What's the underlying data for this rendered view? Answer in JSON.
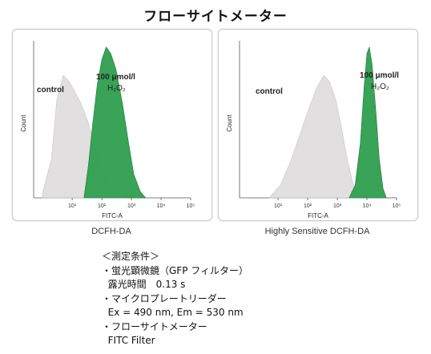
{
  "title": "フローサイトメーター",
  "chart_data": [
    {
      "type": "area",
      "caption": "DCFH-DA",
      "xlabel": "FITC-A",
      "ylabel": "Count",
      "xscale": "log",
      "xlim": [
        0.5,
        100000
      ],
      "ylim": [
        0,
        1.0
      ],
      "xticks": [
        10,
        100,
        1000,
        10000,
        100000
      ],
      "series": [
        {
          "name": "control",
          "color": "#dedcdc",
          "points": [
            [
              1,
              0.03
            ],
            [
              2,
              0.25
            ],
            [
              3,
              0.62
            ],
            [
              5,
              0.78
            ],
            [
              8,
              0.74
            ],
            [
              12,
              0.68
            ],
            [
              20,
              0.6
            ],
            [
              35,
              0.48
            ],
            [
              60,
              0.32
            ],
            [
              100,
              0.18
            ],
            [
              180,
              0.07
            ],
            [
              350,
              0.02
            ],
            [
              600,
              0
            ]
          ]
        },
        {
          "name": "100 μmol/l H2O2",
          "color": "#2e9e4e",
          "points": [
            [
              25,
              0
            ],
            [
              35,
              0.2
            ],
            [
              50,
              0.48
            ],
            [
              70,
              0.72
            ],
            [
              100,
              0.88
            ],
            [
              140,
              0.96
            ],
            [
              200,
              0.92
            ],
            [
              300,
              0.82
            ],
            [
              500,
              0.6
            ],
            [
              800,
              0.35
            ],
            [
              1200,
              0.15
            ],
            [
              2000,
              0.04
            ],
            [
              3000,
              0
            ]
          ]
        }
      ],
      "labels": {
        "control": "control",
        "treat_line1": "100 μmol/l",
        "treat_line2": "H₂O₂"
      }
    },
    {
      "type": "area",
      "caption": "Highly Sensitive DCFH-DA",
      "xlabel": "FITC-A",
      "ylabel": "Count",
      "xscale": "log",
      "xlim": [
        0.5,
        100000
      ],
      "ylim": [
        0,
        1.0
      ],
      "xticks": [
        10,
        100,
        1000,
        10000,
        100000
      ],
      "series": [
        {
          "name": "control",
          "color": "#dedcdc",
          "points": [
            [
              5,
              0
            ],
            [
              12,
              0.08
            ],
            [
              25,
              0.22
            ],
            [
              50,
              0.38
            ],
            [
              100,
              0.55
            ],
            [
              200,
              0.7
            ],
            [
              350,
              0.78
            ],
            [
              550,
              0.74
            ],
            [
              900,
              0.62
            ],
            [
              1400,
              0.44
            ],
            [
              2200,
              0.24
            ],
            [
              3500,
              0.08
            ],
            [
              5500,
              0
            ]
          ]
        },
        {
          "name": "100 μmol/l H2O2",
          "color": "#2e9e4e",
          "points": [
            [
              2500,
              0
            ],
            [
              4000,
              0.08
            ],
            [
              6000,
              0.35
            ],
            [
              8000,
              0.7
            ],
            [
              10000,
              0.92
            ],
            [
              12000,
              0.96
            ],
            [
              15000,
              0.85
            ],
            [
              20000,
              0.55
            ],
            [
              26000,
              0.25
            ],
            [
              35000,
              0.06
            ],
            [
              45000,
              0
            ]
          ]
        }
      ],
      "labels": {
        "control": "control",
        "treat_line1": "100 μmol/l",
        "treat_line2": "H₂O₂"
      }
    }
  ],
  "conditions": {
    "heading": "＜測定条件＞",
    "line1": "・蛍光顕微鏡（GFP フィルター）",
    "line2": "  露光時間　0.13 s",
    "line3": "・マイクロプレートリーダー",
    "line4": "  Ex = 490 nm, Em = 530 nm",
    "line5": "・フローサイトメーター",
    "line6": "  FITC Filter"
  }
}
